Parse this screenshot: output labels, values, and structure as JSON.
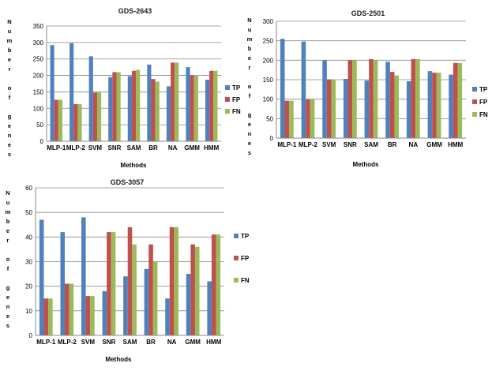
{
  "chart_data": [
    {
      "type": "bar",
      "title": "GDS-2643",
      "categories": [
        "MLP-1",
        "MLP-2",
        "SVM",
        "SNR",
        "SAM",
        "BR",
        "NA",
        "GMM",
        "HMM"
      ],
      "series": [
        {
          "name": "TP",
          "values": [
            292,
            298,
            258,
            195,
            198,
            233,
            167,
            225,
            187
          ]
        },
        {
          "name": "FP",
          "values": [
            126,
            113,
            148,
            210,
            214,
            189,
            239,
            201,
            214
          ]
        },
        {
          "name": "FN",
          "values": [
            126,
            113,
            148,
            210,
            217,
            181,
            239,
            201,
            214
          ]
        }
      ],
      "xlabel": "Methods",
      "ylabel": "Number of genes",
      "ylim": [
        0,
        350
      ],
      "yticks": [
        "0",
        "50",
        "100",
        "150",
        "200",
        "250",
        "300",
        "350"
      ],
      "colors": [
        "#4f81bd",
        "#c0504d",
        "#9bbb59"
      ],
      "legend_position": "right",
      "grid": true
    },
    {
      "type": "bar",
      "title": "GDS-2501",
      "categories": [
        "MLP-1",
        "MLP-2",
        "SVM",
        "SNR",
        "SAM",
        "BR",
        "NA",
        "GMM",
        "HMM"
      ],
      "series": [
        {
          "name": "TP",
          "values": [
            255,
            248,
            200,
            152,
            148,
            196,
            146,
            172,
            163
          ]
        },
        {
          "name": "FP",
          "values": [
            96,
            100,
            151,
            200,
            203,
            170,
            203,
            168,
            193
          ]
        },
        {
          "name": "FN",
          "values": [
            96,
            100,
            151,
            200,
            200,
            161,
            203,
            168,
            193
          ]
        }
      ],
      "xlabel": "Methods",
      "ylabel": "Number of genes",
      "ylim": [
        0,
        300
      ],
      "yticks": [
        "0",
        "50",
        "100",
        "150",
        "200",
        "250",
        "300"
      ],
      "colors": [
        "#4f81bd",
        "#c0504d",
        "#9bbb59"
      ],
      "legend_position": "right",
      "grid": true
    },
    {
      "type": "bar",
      "title": "GDS-3057",
      "categories": [
        "MLP-1",
        "MLP-2",
        "SVM",
        "SNR",
        "SAM",
        "BR",
        "NA",
        "GMM",
        "HMM"
      ],
      "series": [
        {
          "name": "TP",
          "values": [
            47,
            42,
            48,
            18,
            24,
            27,
            15,
            25,
            22
          ]
        },
        {
          "name": "FP",
          "values": [
            15,
            21,
            16,
            42,
            44,
            37,
            44,
            37,
            41
          ]
        },
        {
          "name": "FN",
          "values": [
            15,
            21,
            16,
            42,
            37,
            30,
            44,
            36,
            41
          ]
        }
      ],
      "xlabel": "Methods",
      "ylabel": "Number of genes",
      "ylim": [
        0,
        60
      ],
      "yticks": [
        "0",
        "10",
        "20",
        "30",
        "40",
        "50",
        "60"
      ],
      "colors": [
        "#4f81bd",
        "#c0504d",
        "#9bbb59"
      ],
      "legend_position": "right",
      "grid": true
    }
  ]
}
